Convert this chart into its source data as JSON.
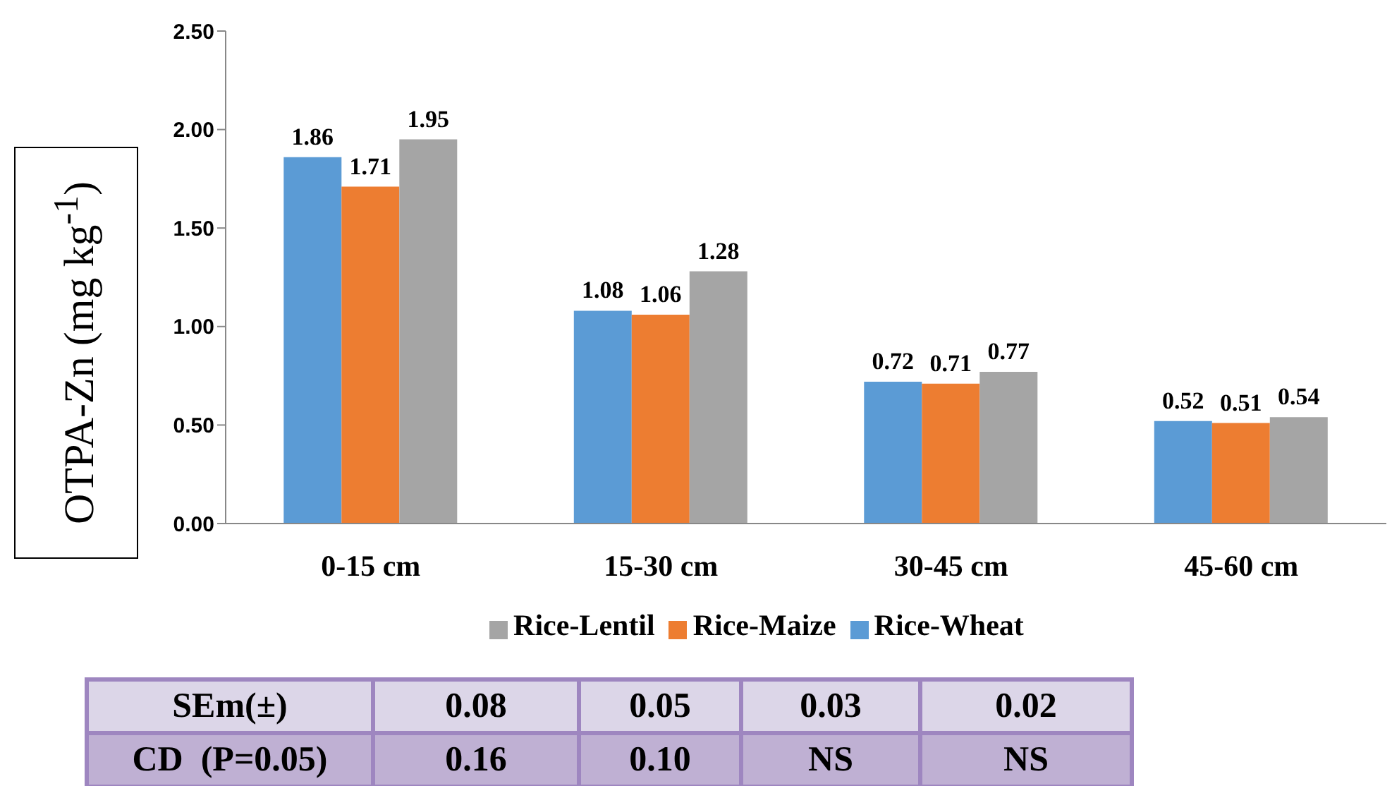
{
  "chart_data": {
    "type": "bar",
    "ylabel": "OTPA-Zn (mg kg$^{-1}$)",
    "categories": [
      "0-15 cm",
      "15-30 cm",
      "30-45 cm",
      "45-60 cm"
    ],
    "series": [
      {
        "name": "Rice-Wheat",
        "color": "#5b9bd5",
        "values": [
          1.86,
          1.08,
          0.72,
          0.52
        ]
      },
      {
        "name": "Rice-Maize",
        "color": "#ed7d31",
        "values": [
          1.71,
          1.06,
          0.71,
          0.51
        ]
      },
      {
        "name": "Rice-Lentil",
        "color": "#a5a5a5",
        "values": [
          1.95,
          1.28,
          0.77,
          0.54
        ]
      }
    ],
    "ylim": [
      0,
      2.5
    ],
    "yticks": [
      {
        "value": 0,
        "label": "0.00"
      },
      {
        "value": 0.5,
        "label": "0.50"
      },
      {
        "value": 1,
        "label": "1.00"
      },
      {
        "value": 1.5,
        "label": "1.50"
      },
      {
        "value": 2,
        "label": "2.00"
      },
      {
        "value": 2.5,
        "label": "2.50"
      }
    ],
    "data_labels": true,
    "legend": "bottom",
    "grid": false,
    "annotations": [
      "SEm(±)",
      "0.08",
      "0.05",
      "0.03",
      "0.02",
      "CD  (P=0.05)",
      "0.16",
      "0.10",
      "NS",
      "NS"
    ]
  }
}
